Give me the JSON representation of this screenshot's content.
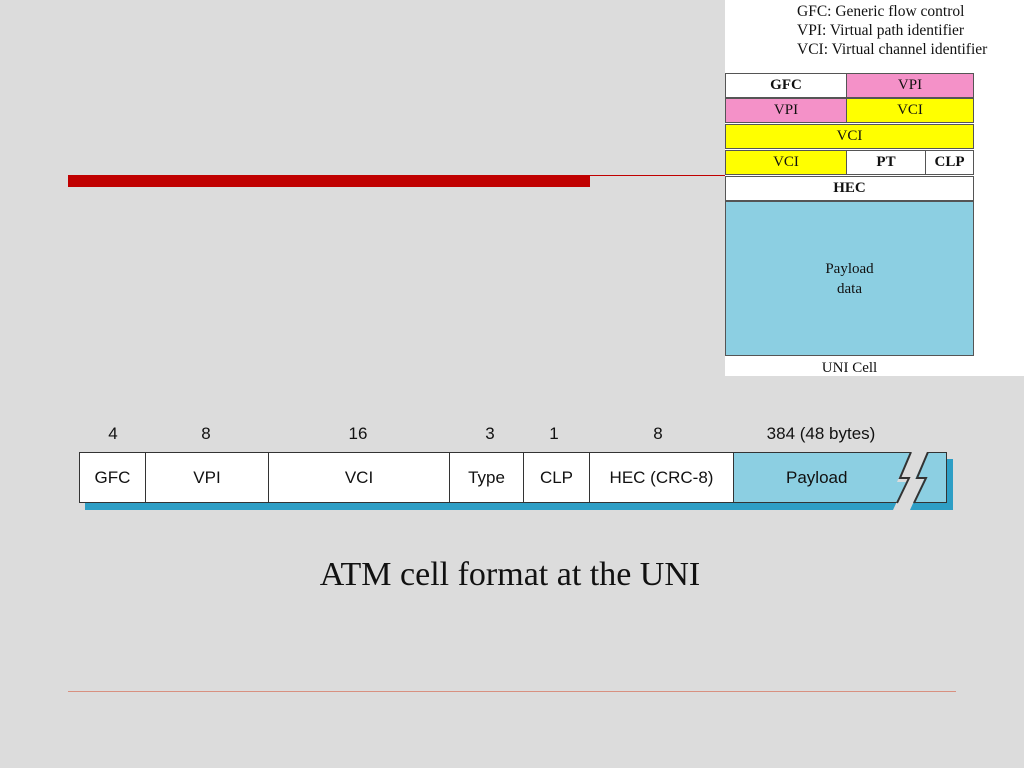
{
  "legend": {
    "lines": [
      "GFC: Generic flow control",
      "VPI: Virtual path identifier",
      "VCI: Virtual channel identifier"
    ]
  },
  "uni_cell": {
    "rows": [
      {
        "left": "GFC",
        "right": "VPI"
      },
      {
        "left": "VPI",
        "right": "VCI"
      },
      {
        "full": "VCI"
      },
      {
        "left": "VCI",
        "middle": "PT",
        "right": "CLP"
      },
      {
        "full": "HEC"
      }
    ],
    "payload": [
      "Payload",
      "data"
    ],
    "caption": "UNI  Cell"
  },
  "format": {
    "bit_counts": [
      "4",
      "8",
      "16",
      "3",
      "1",
      "8",
      "384 (48 bytes)"
    ],
    "fields": [
      "GFC",
      "VPI",
      "VCI",
      "Type",
      "CLP",
      "HEC (CRC-8)",
      "Payload"
    ]
  },
  "caption": "ATM cell format at the UNI",
  "colors": {
    "accent_bar": "#c00000",
    "vpi": "#f491c8",
    "vci": "#ffff00",
    "payload": "#8ccfe2",
    "shadow": "#2e9ec5"
  }
}
